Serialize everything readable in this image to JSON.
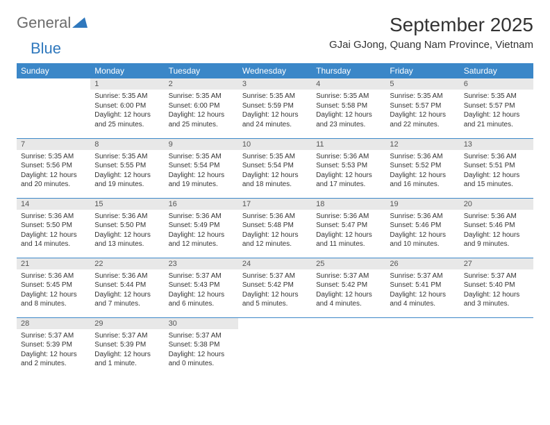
{
  "logo": {
    "general": "General",
    "blue": "Blue"
  },
  "title": "September 2025",
  "location": "GJai GJong, Quang Nam Province, Vietnam",
  "colors": {
    "header_bg": "#3b87c8",
    "header_text": "#ffffff",
    "daynum_bg": "#e8e8e8",
    "divider": "#3b87c8",
    "logo_gray": "#6b6b6b",
    "logo_blue": "#2f78bd",
    "text": "#333333"
  },
  "day_headers": [
    "Sunday",
    "Monday",
    "Tuesday",
    "Wednesday",
    "Thursday",
    "Friday",
    "Saturday"
  ],
  "weeks": [
    [
      {
        "n": "",
        "sr": "",
        "ss": "",
        "dl": ""
      },
      {
        "n": "1",
        "sr": "Sunrise: 5:35 AM",
        "ss": "Sunset: 6:00 PM",
        "dl": "Daylight: 12 hours and 25 minutes."
      },
      {
        "n": "2",
        "sr": "Sunrise: 5:35 AM",
        "ss": "Sunset: 6:00 PM",
        "dl": "Daylight: 12 hours and 25 minutes."
      },
      {
        "n": "3",
        "sr": "Sunrise: 5:35 AM",
        "ss": "Sunset: 5:59 PM",
        "dl": "Daylight: 12 hours and 24 minutes."
      },
      {
        "n": "4",
        "sr": "Sunrise: 5:35 AM",
        "ss": "Sunset: 5:58 PM",
        "dl": "Daylight: 12 hours and 23 minutes."
      },
      {
        "n": "5",
        "sr": "Sunrise: 5:35 AM",
        "ss": "Sunset: 5:57 PM",
        "dl": "Daylight: 12 hours and 22 minutes."
      },
      {
        "n": "6",
        "sr": "Sunrise: 5:35 AM",
        "ss": "Sunset: 5:57 PM",
        "dl": "Daylight: 12 hours and 21 minutes."
      }
    ],
    [
      {
        "n": "7",
        "sr": "Sunrise: 5:35 AM",
        "ss": "Sunset: 5:56 PM",
        "dl": "Daylight: 12 hours and 20 minutes."
      },
      {
        "n": "8",
        "sr": "Sunrise: 5:35 AM",
        "ss": "Sunset: 5:55 PM",
        "dl": "Daylight: 12 hours and 19 minutes."
      },
      {
        "n": "9",
        "sr": "Sunrise: 5:35 AM",
        "ss": "Sunset: 5:54 PM",
        "dl": "Daylight: 12 hours and 19 minutes."
      },
      {
        "n": "10",
        "sr": "Sunrise: 5:35 AM",
        "ss": "Sunset: 5:54 PM",
        "dl": "Daylight: 12 hours and 18 minutes."
      },
      {
        "n": "11",
        "sr": "Sunrise: 5:36 AM",
        "ss": "Sunset: 5:53 PM",
        "dl": "Daylight: 12 hours and 17 minutes."
      },
      {
        "n": "12",
        "sr": "Sunrise: 5:36 AM",
        "ss": "Sunset: 5:52 PM",
        "dl": "Daylight: 12 hours and 16 minutes."
      },
      {
        "n": "13",
        "sr": "Sunrise: 5:36 AM",
        "ss": "Sunset: 5:51 PM",
        "dl": "Daylight: 12 hours and 15 minutes."
      }
    ],
    [
      {
        "n": "14",
        "sr": "Sunrise: 5:36 AM",
        "ss": "Sunset: 5:50 PM",
        "dl": "Daylight: 12 hours and 14 minutes."
      },
      {
        "n": "15",
        "sr": "Sunrise: 5:36 AM",
        "ss": "Sunset: 5:50 PM",
        "dl": "Daylight: 12 hours and 13 minutes."
      },
      {
        "n": "16",
        "sr": "Sunrise: 5:36 AM",
        "ss": "Sunset: 5:49 PM",
        "dl": "Daylight: 12 hours and 12 minutes."
      },
      {
        "n": "17",
        "sr": "Sunrise: 5:36 AM",
        "ss": "Sunset: 5:48 PM",
        "dl": "Daylight: 12 hours and 12 minutes."
      },
      {
        "n": "18",
        "sr": "Sunrise: 5:36 AM",
        "ss": "Sunset: 5:47 PM",
        "dl": "Daylight: 12 hours and 11 minutes."
      },
      {
        "n": "19",
        "sr": "Sunrise: 5:36 AM",
        "ss": "Sunset: 5:46 PM",
        "dl": "Daylight: 12 hours and 10 minutes."
      },
      {
        "n": "20",
        "sr": "Sunrise: 5:36 AM",
        "ss": "Sunset: 5:46 PM",
        "dl": "Daylight: 12 hours and 9 minutes."
      }
    ],
    [
      {
        "n": "21",
        "sr": "Sunrise: 5:36 AM",
        "ss": "Sunset: 5:45 PM",
        "dl": "Daylight: 12 hours and 8 minutes."
      },
      {
        "n": "22",
        "sr": "Sunrise: 5:36 AM",
        "ss": "Sunset: 5:44 PM",
        "dl": "Daylight: 12 hours and 7 minutes."
      },
      {
        "n": "23",
        "sr": "Sunrise: 5:37 AM",
        "ss": "Sunset: 5:43 PM",
        "dl": "Daylight: 12 hours and 6 minutes."
      },
      {
        "n": "24",
        "sr": "Sunrise: 5:37 AM",
        "ss": "Sunset: 5:42 PM",
        "dl": "Daylight: 12 hours and 5 minutes."
      },
      {
        "n": "25",
        "sr": "Sunrise: 5:37 AM",
        "ss": "Sunset: 5:42 PM",
        "dl": "Daylight: 12 hours and 4 minutes."
      },
      {
        "n": "26",
        "sr": "Sunrise: 5:37 AM",
        "ss": "Sunset: 5:41 PM",
        "dl": "Daylight: 12 hours and 4 minutes."
      },
      {
        "n": "27",
        "sr": "Sunrise: 5:37 AM",
        "ss": "Sunset: 5:40 PM",
        "dl": "Daylight: 12 hours and 3 minutes."
      }
    ],
    [
      {
        "n": "28",
        "sr": "Sunrise: 5:37 AM",
        "ss": "Sunset: 5:39 PM",
        "dl": "Daylight: 12 hours and 2 minutes."
      },
      {
        "n": "29",
        "sr": "Sunrise: 5:37 AM",
        "ss": "Sunset: 5:39 PM",
        "dl": "Daylight: 12 hours and 1 minute."
      },
      {
        "n": "30",
        "sr": "Sunrise: 5:37 AM",
        "ss": "Sunset: 5:38 PM",
        "dl": "Daylight: 12 hours and 0 minutes."
      },
      {
        "n": "",
        "sr": "",
        "ss": "",
        "dl": ""
      },
      {
        "n": "",
        "sr": "",
        "ss": "",
        "dl": ""
      },
      {
        "n": "",
        "sr": "",
        "ss": "",
        "dl": ""
      },
      {
        "n": "",
        "sr": "",
        "ss": "",
        "dl": ""
      }
    ]
  ]
}
